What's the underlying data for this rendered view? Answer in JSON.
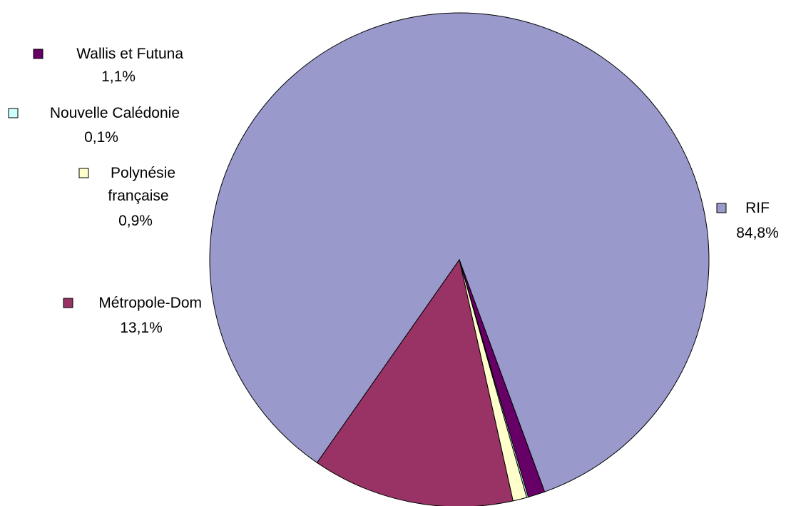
{
  "chart_data": {
    "type": "pie",
    "title": "",
    "legend": "none",
    "slices": [
      {
        "name": "RIF",
        "value": 84.8,
        "label": "84,8%",
        "color": "#9999CC"
      },
      {
        "name": "Métropole-Dom",
        "value": 13.1,
        "label": "13,1%",
        "color": "#993366"
      },
      {
        "name": "Polynésie française",
        "value": 0.9,
        "label": "0,9%",
        "color": "#FFFFCC"
      },
      {
        "name": "Nouvelle Calédonie",
        "value": 0.1,
        "label": "0,1%",
        "color": "#CCFFFF"
      },
      {
        "name": "Wallis et Futuna",
        "value": 1.1,
        "label": "1,1%",
        "color": "#660066"
      }
    ]
  }
}
